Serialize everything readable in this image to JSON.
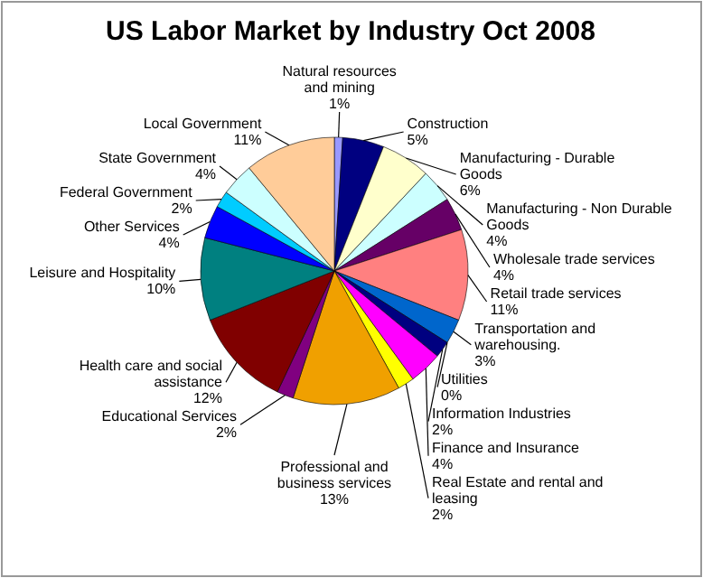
{
  "chart_data": {
    "type": "pie",
    "title": "US Labor Market by Industry Oct 2008",
    "categories": [
      "Natural resources and mining",
      "Construction",
      "Manufacturing - Durable Goods",
      "Manufacturing - Non Durable Goods",
      "Wholesale trade services",
      "Retail trade services",
      "Transportation and warehousing.",
      "Utilities",
      "Information Industries",
      "Finance and Insurance",
      "Real Estate and rental and leasing",
      "Professional and business services",
      "Educational Services",
      "Health care and social assistance",
      "Leisure and Hospitality",
      "Other Services",
      "Federal Government",
      "State Government",
      "Local Government"
    ],
    "values": [
      1,
      5,
      6,
      4,
      4,
      11,
      3,
      0,
      2,
      4,
      2,
      13,
      2,
      12,
      10,
      4,
      2,
      4,
      11
    ],
    "value_labels": [
      "1%",
      "5%",
      "6%",
      "4%",
      "4%",
      "11%",
      "3%",
      "0%",
      "2%",
      "4%",
      "2%",
      "13%",
      "2%",
      "12%",
      "10%",
      "4%",
      "2%",
      "4%",
      "11%"
    ],
    "colors": [
      "#9999ff",
      "#000080",
      "#ffffcc",
      "#ccffff",
      "#660066",
      "#ff8080",
      "#0066cc",
      "#ccccff",
      "#000080",
      "#ff00ff",
      "#ffff00",
      "#f0a000",
      "#800080",
      "#800000",
      "#008080",
      "#0000ff",
      "#00ccff",
      "#ccffff",
      "#ffcc99"
    ]
  }
}
